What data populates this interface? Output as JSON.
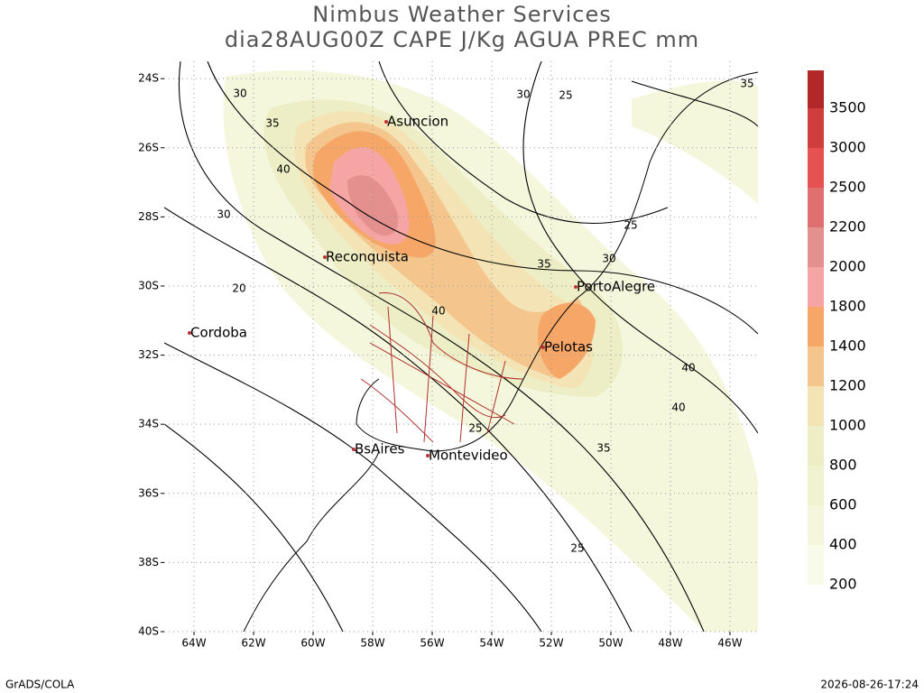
{
  "map": {
    "title": "Nimbus Weather Services",
    "subtitle": "dia28AUG00Z CAPE J/Kg AGUA PREC mm",
    "xlim": [
      -65,
      -45
    ],
    "ylim": [
      -40,
      -23.5
    ],
    "xticks": [
      {
        "value": -64,
        "label": "64W"
      },
      {
        "value": -62,
        "label": "62W"
      },
      {
        "value": -60,
        "label": "60W"
      },
      {
        "value": -58,
        "label": "58W"
      },
      {
        "value": -56,
        "label": "56W"
      },
      {
        "value": -54,
        "label": "54W"
      },
      {
        "value": -52,
        "label": "52W"
      },
      {
        "value": -50,
        "label": "50W"
      },
      {
        "value": -48,
        "label": "48W"
      },
      {
        "value": -46,
        "label": "46W"
      }
    ],
    "yticks": [
      {
        "value": -24,
        "label": "24S"
      },
      {
        "value": -26,
        "label": "26S"
      },
      {
        "value": -28,
        "label": "28S"
      },
      {
        "value": -30,
        "label": "30S"
      },
      {
        "value": -32,
        "label": "32S"
      },
      {
        "value": -34,
        "label": "34S"
      },
      {
        "value": -36,
        "label": "36S"
      },
      {
        "value": -38,
        "label": "38S"
      },
      {
        "value": -40,
        "label": "40S"
      }
    ],
    "grid": true,
    "colorbar": {
      "levels": [
        200,
        400,
        600,
        800,
        1000,
        1200,
        1400,
        1800,
        2000,
        2200,
        2500,
        3000,
        3500
      ],
      "colors": [
        "#f9fbea",
        "#f5f7dd",
        "#f0f2d0",
        "#eeeec6",
        "#f4e3b4",
        "#f4c68e",
        "#f6a768",
        "#f5a5a3",
        "#e4908e",
        "#e07070",
        "#e65252",
        "#cf3d3d",
        "#b02828"
      ]
    },
    "cities": [
      "Asuncion",
      "Reconquista",
      "Cordoba",
      "PortoAlegre",
      "Pelotas",
      "BsAires",
      "Montevideo"
    ],
    "contour_labels": [
      "30",
      "35",
      "40",
      "30",
      "20",
      "30",
      "25",
      "25",
      "35",
      "30",
      "40",
      "40",
      "40",
      "35",
      "25",
      "25",
      "35"
    ],
    "footer_left": "GrADS/COLA",
    "footer_right": "2026-08-26-17:24"
  }
}
